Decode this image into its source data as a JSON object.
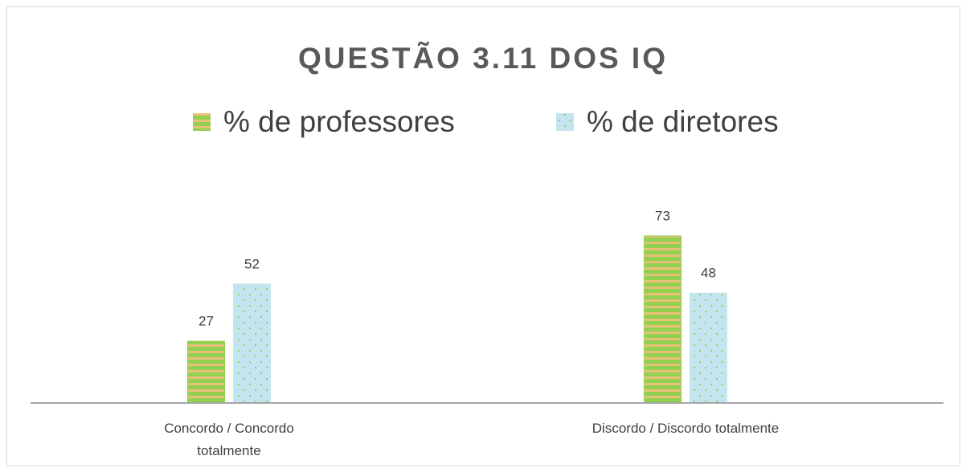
{
  "chart_data": {
    "type": "bar",
    "title": "QUESTÃO 3.11 DOS IQ",
    "categories": [
      "Concordo / Concordo totalmente",
      "Discordo / Discordo totalmente"
    ],
    "series": [
      {
        "name": "% de professores",
        "color": "#92d050",
        "values": [
          27,
          73
        ]
      },
      {
        "name": "% de diretores",
        "color": "#c3e5ef",
        "values": [
          52,
          48
        ]
      }
    ],
    "ylim": [
      0,
      80
    ]
  }
}
